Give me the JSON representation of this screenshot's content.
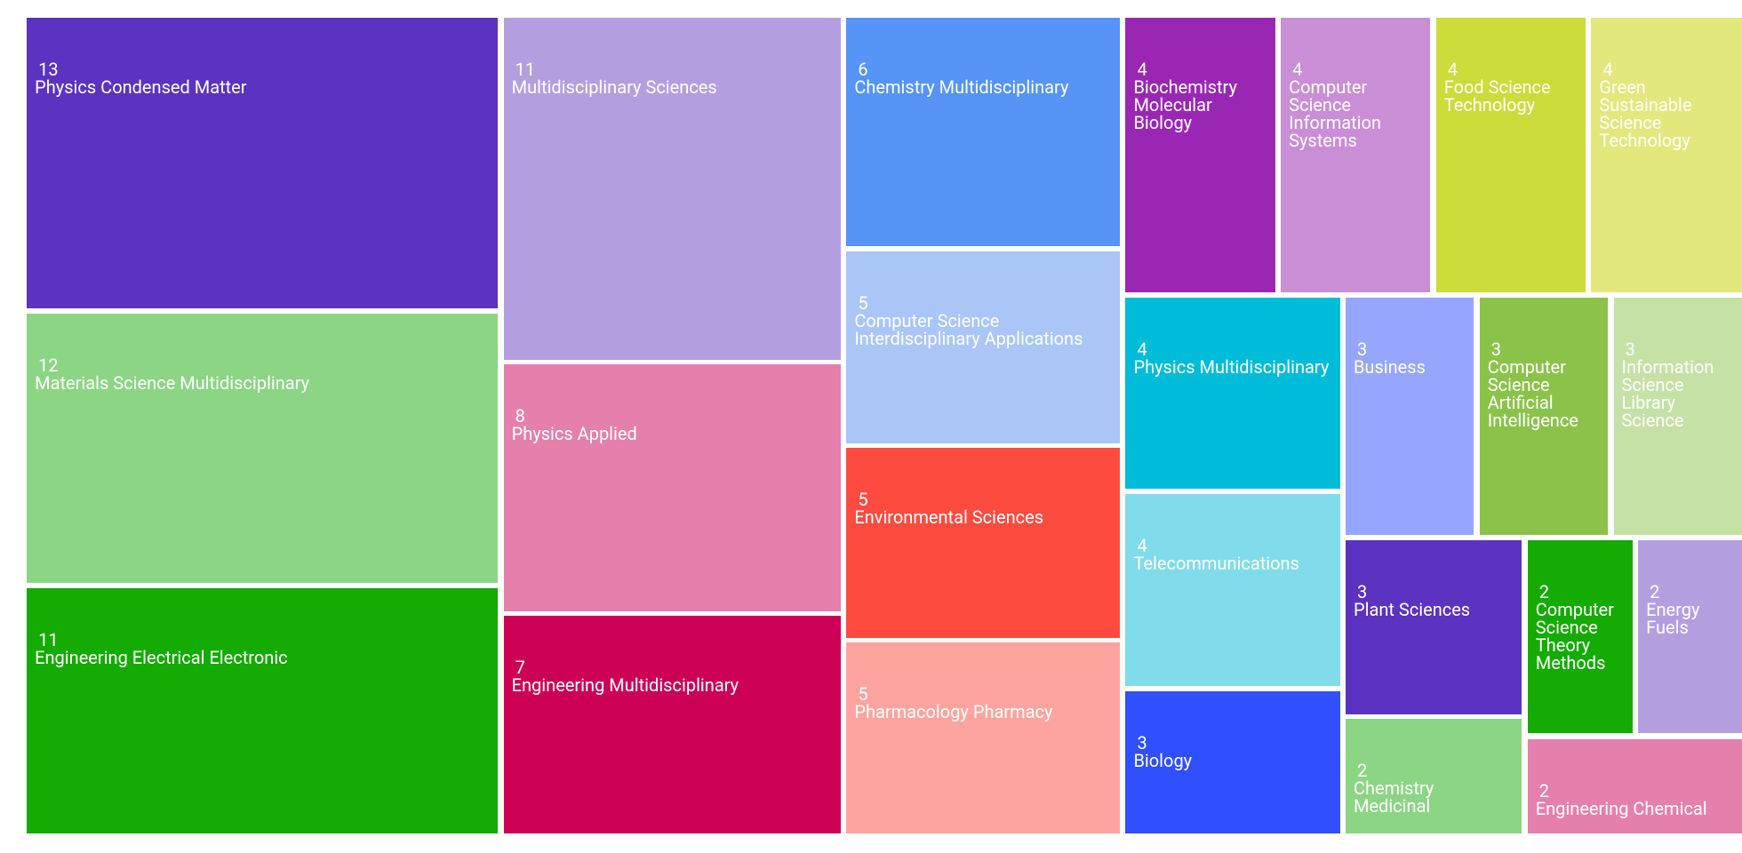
{
  "chart_data": {
    "type": "treemap",
    "categories": [
      "Physics Condensed Matter",
      "Materials Science Multidisciplinary",
      "Engineering Electrical Electronic",
      "Multidisciplinary Sciences",
      "Physics Applied",
      "Engineering Multidisciplinary",
      "Chemistry Multidisciplinary",
      "Computer Science Interdisciplinary Applications",
      "Environmental Sciences",
      "Pharmacology Pharmacy",
      "Biochemistry Molecular Biology",
      "Computer Science Information Systems",
      "Food Science Technology",
      "Green Sustainable Science Technology",
      "Physics Multidisciplinary",
      "Telecommunications",
      "Biology",
      "Business",
      "Computer Science Artificial Intelligence",
      "Information Science Library Science",
      "Plant Sciences",
      "Chemistry Medicinal",
      "Computer Science Theory Methods",
      "Energy Fuels",
      "Engineering Chemical"
    ],
    "values": [
      13,
      12,
      11,
      11,
      8,
      7,
      6,
      5,
      5,
      5,
      4,
      4,
      4,
      4,
      4,
      4,
      3,
      3,
      3,
      3,
      3,
      2,
      2,
      2,
      2
    ],
    "colors": [
      "#5c33c0",
      "#8cd584",
      "#14ab02",
      "#b39fe0",
      "#e57fab",
      "#cc0055",
      "#5694f5",
      "#a9c6f7",
      "#fe4b3f",
      "#fea49f",
      "#9a27b4",
      "#c98ed6",
      "#ccdc3a",
      "#e2e87c",
      "#00bcd8",
      "#80dcea",
      "#304ffe",
      "#97a6fd",
      "#8bc34a",
      "#c5e1a5",
      "#5c33c0",
      "#8cd584",
      "#14ab02",
      "#b39fe0",
      "#e57fab"
    ]
  }
}
